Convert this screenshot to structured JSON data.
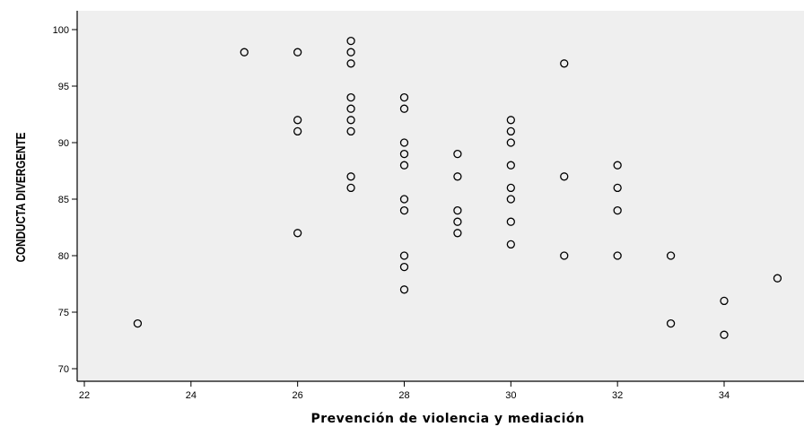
{
  "chart_data": {
    "type": "scatter",
    "xlabel": "Prevención de violencia y mediación",
    "ylabel": "CONDUCTA DIVERGENTE",
    "xlim": [
      21.8,
      35.7
    ],
    "ylim": [
      68.5,
      102
    ],
    "xticks": [
      22,
      24,
      26,
      28,
      30,
      32,
      34
    ],
    "yticks": [
      70,
      75,
      80,
      85,
      90,
      95,
      100
    ],
    "grid": false,
    "marker": "open-circle",
    "colors": {
      "plot_bg": "#efefef",
      "marker_edge": "#000000",
      "axis": "#000000"
    },
    "points": [
      {
        "x": 23,
        "y": 74
      },
      {
        "x": 25,
        "y": 98
      },
      {
        "x": 26,
        "y": 98
      },
      {
        "x": 26,
        "y": 92
      },
      {
        "x": 26,
        "y": 91
      },
      {
        "x": 26,
        "y": 82
      },
      {
        "x": 27,
        "y": 99
      },
      {
        "x": 27,
        "y": 98
      },
      {
        "x": 27,
        "y": 97
      },
      {
        "x": 27,
        "y": 94
      },
      {
        "x": 27,
        "y": 93
      },
      {
        "x": 27,
        "y": 92
      },
      {
        "x": 27,
        "y": 91
      },
      {
        "x": 27,
        "y": 87
      },
      {
        "x": 27,
        "y": 86
      },
      {
        "x": 28,
        "y": 94
      },
      {
        "x": 28,
        "y": 93
      },
      {
        "x": 28,
        "y": 90
      },
      {
        "x": 28,
        "y": 89
      },
      {
        "x": 28,
        "y": 88
      },
      {
        "x": 28,
        "y": 85
      },
      {
        "x": 28,
        "y": 84
      },
      {
        "x": 28,
        "y": 80
      },
      {
        "x": 28,
        "y": 79
      },
      {
        "x": 28,
        "y": 77
      },
      {
        "x": 29,
        "y": 89
      },
      {
        "x": 29,
        "y": 87
      },
      {
        "x": 29,
        "y": 84
      },
      {
        "x": 29,
        "y": 83
      },
      {
        "x": 29,
        "y": 82
      },
      {
        "x": 30,
        "y": 92
      },
      {
        "x": 30,
        "y": 91
      },
      {
        "x": 30,
        "y": 90
      },
      {
        "x": 30,
        "y": 88
      },
      {
        "x": 30,
        "y": 86
      },
      {
        "x": 30,
        "y": 85
      },
      {
        "x": 30,
        "y": 83
      },
      {
        "x": 30,
        "y": 81
      },
      {
        "x": 31,
        "y": 97
      },
      {
        "x": 31,
        "y": 87
      },
      {
        "x": 31,
        "y": 80
      },
      {
        "x": 32,
        "y": 88
      },
      {
        "x": 32,
        "y": 86
      },
      {
        "x": 32,
        "y": 84
      },
      {
        "x": 32,
        "y": 80
      },
      {
        "x": 33,
        "y": 80
      },
      {
        "x": 33,
        "y": 74
      },
      {
        "x": 34,
        "y": 76
      },
      {
        "x": 34,
        "y": 73
      },
      {
        "x": 35,
        "y": 78
      }
    ]
  }
}
